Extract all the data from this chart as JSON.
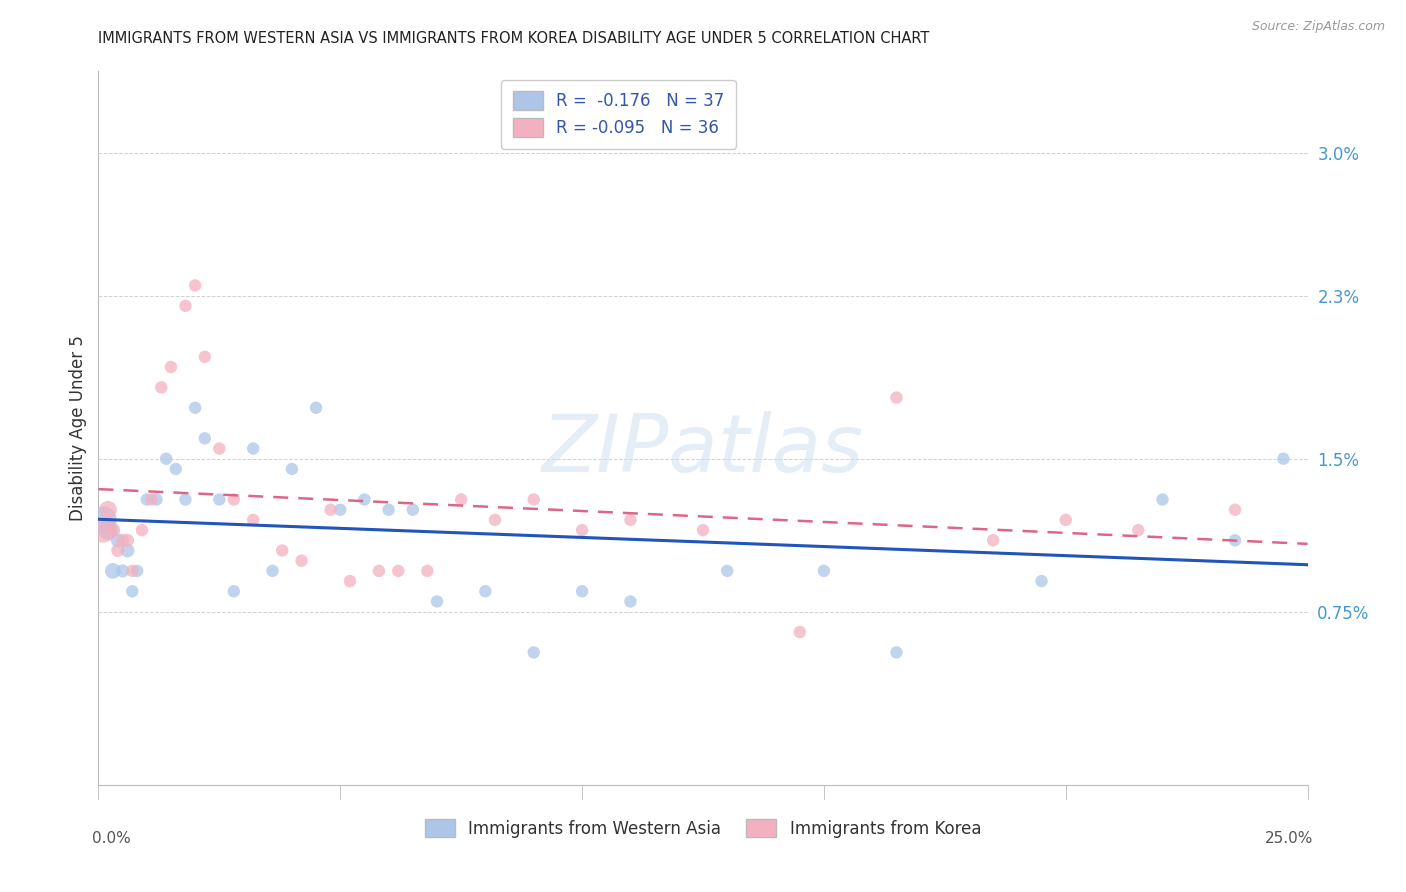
{
  "title": "IMMIGRANTS FROM WESTERN ASIA VS IMMIGRANTS FROM KOREA DISABILITY AGE UNDER 5 CORRELATION CHART",
  "source": "Source: ZipAtlas.com",
  "ylabel": "Disability Age Under 5",
  "ytick_labels": [
    "0.75%",
    "1.5%",
    "2.3%",
    "3.0%"
  ],
  "ytick_values": [
    0.0075,
    0.015,
    0.023,
    0.03
  ],
  "xlim": [
    0.0,
    0.25
  ],
  "ylim": [
    -0.001,
    0.034
  ],
  "legend1_R": "-0.176",
  "legend1_N": "37",
  "legend2_R": "-0.095",
  "legend2_N": "36",
  "legend_label1": "Immigrants from Western Asia",
  "legend_label2": "Immigrants from Korea",
  "color_blue": "#adc6e8",
  "color_pink": "#f2b0c0",
  "color_blue_line": "#2255bb",
  "color_pink_line": "#dd6688",
  "background_color": "#ffffff",
  "western_asia_x": [
    0.001,
    0.002,
    0.003,
    0.004,
    0.005,
    0.006,
    0.007,
    0.008,
    0.01,
    0.012,
    0.014,
    0.016,
    0.018,
    0.02,
    0.022,
    0.025,
    0.028,
    0.032,
    0.036,
    0.04,
    0.045,
    0.05,
    0.055,
    0.06,
    0.065,
    0.07,
    0.08,
    0.09,
    0.1,
    0.11,
    0.13,
    0.15,
    0.165,
    0.195,
    0.22,
    0.235,
    0.245
  ],
  "western_asia_y": [
    0.012,
    0.0115,
    0.0095,
    0.011,
    0.0095,
    0.0105,
    0.0085,
    0.0095,
    0.013,
    0.013,
    0.015,
    0.0145,
    0.013,
    0.0175,
    0.016,
    0.013,
    0.0085,
    0.0155,
    0.0095,
    0.0145,
    0.0175,
    0.0125,
    0.013,
    0.0125,
    0.0125,
    0.008,
    0.0085,
    0.0055,
    0.0085,
    0.008,
    0.0095,
    0.0095,
    0.0055,
    0.009,
    0.013,
    0.011,
    0.015
  ],
  "korea_x": [
    0.001,
    0.002,
    0.003,
    0.004,
    0.005,
    0.006,
    0.007,
    0.009,
    0.011,
    0.013,
    0.015,
    0.018,
    0.02,
    0.022,
    0.025,
    0.028,
    0.032,
    0.038,
    0.042,
    0.048,
    0.052,
    0.058,
    0.062,
    0.068,
    0.075,
    0.082,
    0.09,
    0.1,
    0.11,
    0.125,
    0.145,
    0.165,
    0.185,
    0.2,
    0.215,
    0.235
  ],
  "korea_y": [
    0.0115,
    0.0125,
    0.0115,
    0.0105,
    0.011,
    0.011,
    0.0095,
    0.0115,
    0.013,
    0.0185,
    0.0195,
    0.0225,
    0.0235,
    0.02,
    0.0155,
    0.013,
    0.012,
    0.0105,
    0.01,
    0.0125,
    0.009,
    0.0095,
    0.0095,
    0.0095,
    0.013,
    0.012,
    0.013,
    0.0115,
    0.012,
    0.0115,
    0.0065,
    0.018,
    0.011,
    0.012,
    0.0115,
    0.0125
  ],
  "western_asia_sizes": [
    380,
    200,
    130,
    100,
    90,
    100,
    80,
    80,
    80,
    80,
    80,
    80,
    80,
    80,
    80,
    80,
    80,
    80,
    80,
    80,
    80,
    80,
    80,
    80,
    80,
    80,
    80,
    80,
    80,
    80,
    80,
    80,
    80,
    80,
    80,
    80,
    80
  ],
  "korea_sizes": [
    320,
    160,
    110,
    90,
    85,
    90,
    80,
    80,
    80,
    80,
    80,
    80,
    80,
    80,
    80,
    80,
    80,
    80,
    80,
    80,
    80,
    80,
    80,
    80,
    80,
    80,
    80,
    80,
    80,
    80,
    80,
    80,
    80,
    80,
    80,
    80
  ]
}
